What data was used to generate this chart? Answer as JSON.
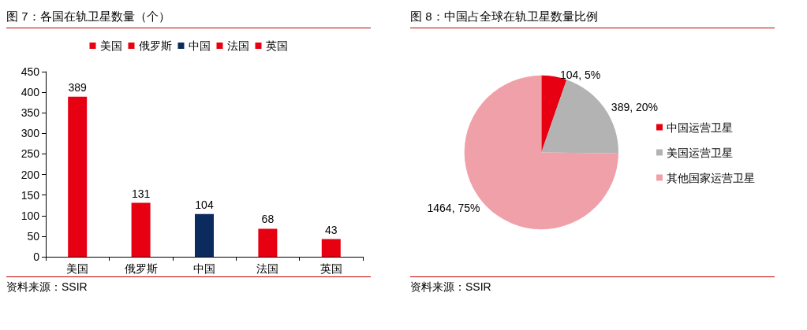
{
  "chart_data": [
    {
      "type": "bar",
      "title": "图 7：各国在轨卫星数量（个）",
      "categories": [
        "美国",
        "俄罗斯",
        "中国",
        "法国",
        "英国"
      ],
      "series": [
        {
          "name": "美国",
          "color": "#e60012",
          "values": [
            389,
            null,
            null,
            null,
            null
          ]
        },
        {
          "name": "俄罗斯",
          "color": "#e60012",
          "values": [
            null,
            131,
            null,
            null,
            null
          ]
        },
        {
          "name": "中国",
          "color": "#0b2a5e",
          "values": [
            null,
            null,
            104,
            null,
            null
          ]
        },
        {
          "name": "法国",
          "color": "#e60012",
          "values": [
            null,
            null,
            null,
            68,
            null
          ]
        },
        {
          "name": "英国",
          "color": "#e60012",
          "values": [
            null,
            null,
            null,
            null,
            43
          ]
        }
      ],
      "ylim": [
        0,
        450
      ],
      "yticks": [
        0,
        50,
        100,
        150,
        200,
        250,
        300,
        350,
        400,
        450
      ],
      "grid": false,
      "legend": "top",
      "data_labels": true,
      "annotations": [
        "资料来源：SSIR"
      ]
    },
    {
      "type": "pie",
      "title": "图 8：中国占全球在轨卫星数量比例",
      "categories": [
        "中国运营卫星",
        "美国运营卫星",
        "其他国家运营卫星"
      ],
      "values": [
        104,
        389,
        1464
      ],
      "colors": [
        "#e60012",
        "#b3b3b3",
        "#f0a0a8"
      ],
      "value_labels": [
        "104, 5%",
        "389, 20%",
        "1464, 75%"
      ],
      "legend": "right",
      "annotations": [
        "资料来源：SSIR"
      ]
    }
  ]
}
